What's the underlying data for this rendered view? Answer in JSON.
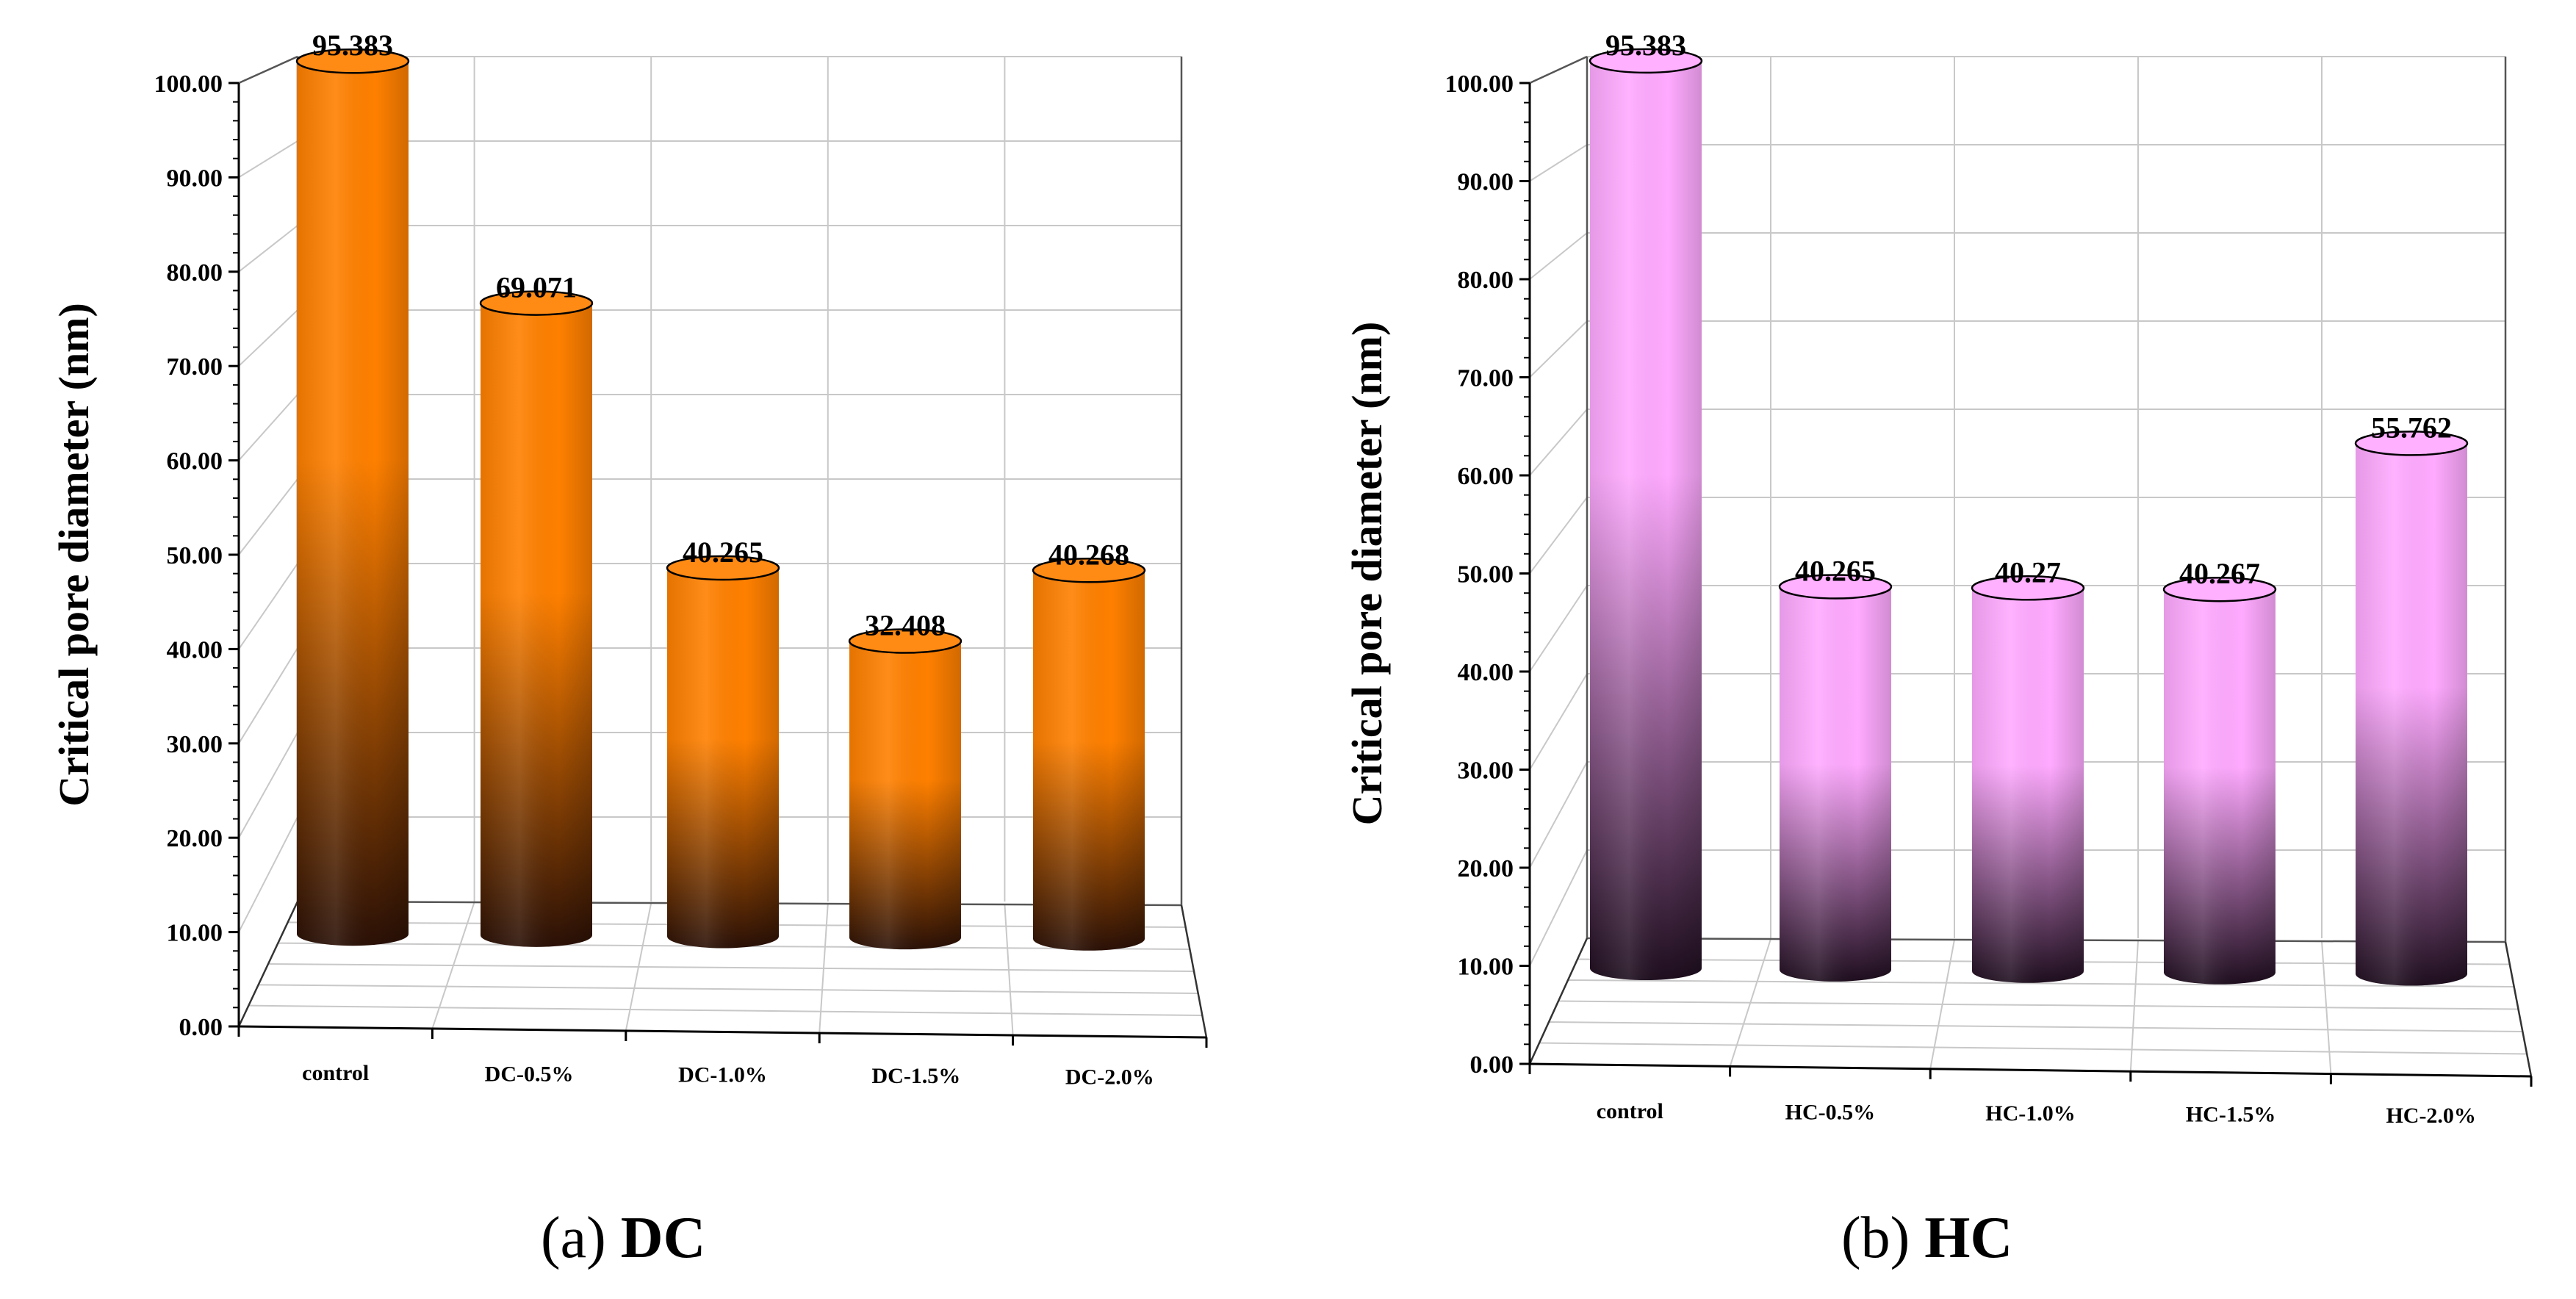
{
  "chart_data": [
    {
      "type": "bar",
      "panel": "(a)",
      "panel_name": "DC",
      "categories": [
        "control",
        "DC-0.5%",
        "DC-1.0%",
        "DC-1.5%",
        "DC-2.0%"
      ],
      "values": [
        95.383,
        69.071,
        40.265,
        32.408,
        40.268
      ],
      "value_labels": [
        "95.383",
        "69.071",
        "40.265",
        "32.408",
        "40.268"
      ],
      "ylabel": "Critical pore diameter (nm)",
      "xlabel": "",
      "ylim": [
        0,
        100
      ],
      "yticks": [
        "0.00",
        "10.00",
        "20.00",
        "30.00",
        "40.00",
        "50.00",
        "60.00",
        "70.00",
        "80.00",
        "90.00",
        "100.00"
      ],
      "grid": true,
      "colors": {
        "top": "#ff8000",
        "bottom": "#2a1006",
        "cap": "#ff8a14"
      }
    },
    {
      "type": "bar",
      "panel": "(b)",
      "panel_name": "HC",
      "categories": [
        "control",
        "HC-0.5%",
        "HC-1.0%",
        "HC-1.5%",
        "HC-2.0%"
      ],
      "values": [
        95.383,
        40.265,
        40.27,
        40.267,
        55.762
      ],
      "value_labels": [
        "95.383",
        "40.265",
        "40.27",
        "40.267",
        "55.762"
      ],
      "ylabel": "Critical pore diameter (nm)",
      "xlabel": "",
      "ylim": [
        0,
        100
      ],
      "yticks": [
        "0.00",
        "10.00",
        "20.00",
        "30.00",
        "40.00",
        "50.00",
        "60.00",
        "70.00",
        "80.00",
        "90.00",
        "100.00"
      ],
      "grid": true,
      "colors": {
        "top": "#ffaaff",
        "bottom": "#1e0e1e",
        "cap": "#ffb0ff"
      }
    }
  ]
}
